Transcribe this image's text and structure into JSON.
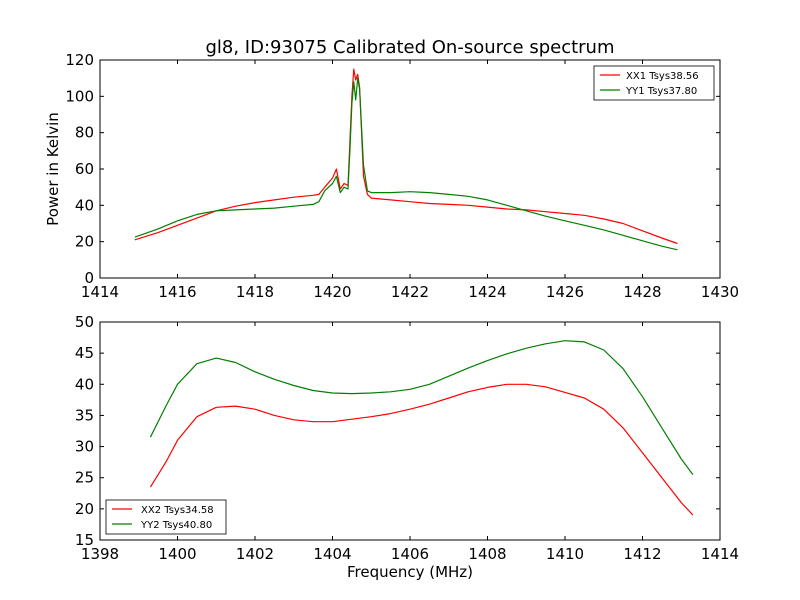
{
  "title": "gl8, ID:93075 Calibrated On-source spectrum",
  "chart_data": [
    {
      "type": "line",
      "ylabel": "Power in Kelvin",
      "xlabel": "",
      "xlim": [
        1414,
        1430
      ],
      "ylim": [
        0,
        120
      ],
      "xticks": [
        "1414",
        "1416",
        "1418",
        "1420",
        "1422",
        "1424",
        "1426",
        "1428",
        "1430"
      ],
      "yticks": [
        "0",
        "20",
        "40",
        "60",
        "80",
        "100",
        "120"
      ],
      "xtick_values": [
        1414,
        1416,
        1418,
        1420,
        1422,
        1424,
        1426,
        1428,
        1430
      ],
      "ytick_values": [
        0,
        20,
        40,
        60,
        80,
        100,
        120
      ],
      "legend_position": "top-right",
      "grid": false,
      "series": [
        {
          "name": "XX1 Tsys38.56",
          "color": "#ff0000",
          "x": [
            1414.9,
            1415.5,
            1416.0,
            1416.5,
            1417.0,
            1417.5,
            1418.0,
            1418.5,
            1419.0,
            1419.5,
            1419.65,
            1419.8,
            1420.0,
            1420.1,
            1420.2,
            1420.3,
            1420.4,
            1420.45,
            1420.5,
            1420.55,
            1420.6,
            1420.65,
            1420.7,
            1420.8,
            1420.9,
            1421.0,
            1421.5,
            1422.0,
            1422.5,
            1423.0,
            1423.5,
            1424.0,
            1424.5,
            1425.0,
            1425.5,
            1426.0,
            1426.5,
            1427.0,
            1427.5,
            1428.0,
            1428.5,
            1428.9
          ],
          "y": [
            21,
            25,
            29,
            33,
            37,
            39.5,
            41.5,
            43,
            44.5,
            45.5,
            46,
            50,
            55,
            60,
            49,
            52,
            51,
            75,
            100,
            115,
            109,
            112,
            105,
            56,
            46,
            44,
            43,
            42,
            41,
            40.5,
            40,
            39,
            38,
            37.5,
            36.5,
            35.5,
            34.5,
            32.5,
            30,
            26,
            22,
            19
          ]
        },
        {
          "name": "YY1 Tsys37.80",
          "color": "#008000",
          "x": [
            1414.9,
            1415.5,
            1416.0,
            1416.5,
            1417.0,
            1417.5,
            1418.0,
            1418.5,
            1419.0,
            1419.5,
            1419.65,
            1419.8,
            1420.0,
            1420.1,
            1420.2,
            1420.3,
            1420.4,
            1420.45,
            1420.5,
            1420.55,
            1420.6,
            1420.65,
            1420.7,
            1420.8,
            1420.9,
            1421.0,
            1421.5,
            1422.0,
            1422.5,
            1423.0,
            1423.5,
            1424.0,
            1424.5,
            1425.0,
            1425.5,
            1426.0,
            1426.5,
            1427.0,
            1427.5,
            1428.0,
            1428.5,
            1428.9
          ],
          "y": [
            22.5,
            27,
            31.5,
            35,
            37,
            37.5,
            38,
            38.5,
            39.5,
            40.5,
            42,
            48,
            52,
            56,
            47,
            50,
            49,
            70,
            96,
            108,
            98,
            110,
            104,
            62,
            48,
            47,
            47,
            47.5,
            47,
            46,
            45,
            43,
            40,
            37,
            34,
            31.5,
            29,
            26.5,
            23.5,
            20.5,
            17.5,
            15.5
          ]
        }
      ]
    },
    {
      "type": "line",
      "ylabel": "",
      "xlabel": "Frequency (MHz)",
      "xlim": [
        1398,
        1414
      ],
      "ylim": [
        15,
        50
      ],
      "xticks": [
        "1398",
        "1400",
        "1402",
        "1404",
        "1406",
        "1408",
        "1410",
        "1412",
        "1414"
      ],
      "yticks": [
        "15",
        "20",
        "25",
        "30",
        "35",
        "40",
        "45",
        "50"
      ],
      "xtick_values": [
        1398,
        1400,
        1402,
        1404,
        1406,
        1408,
        1410,
        1412,
        1414
      ],
      "ytick_values": [
        15,
        20,
        25,
        30,
        35,
        40,
        45,
        50
      ],
      "legend_position": "lower-left",
      "grid": false,
      "series": [
        {
          "name": "XX2 Tsys34.58",
          "color": "#ff0000",
          "x": [
            1399.3,
            1399.7,
            1400.0,
            1400.5,
            1401.0,
            1401.5,
            1402.0,
            1402.5,
            1403.0,
            1403.5,
            1404.0,
            1404.5,
            1405.0,
            1405.5,
            1406.0,
            1406.5,
            1407.0,
            1407.5,
            1408.0,
            1408.5,
            1409.0,
            1409.5,
            1410.0,
            1410.5,
            1411.0,
            1411.5,
            1412.0,
            1412.5,
            1413.0,
            1413.3
          ],
          "y": [
            23.5,
            27.5,
            31,
            34.8,
            36.3,
            36.5,
            36,
            35,
            34.3,
            34,
            34,
            34.4,
            34.8,
            35.3,
            36,
            36.8,
            37.8,
            38.8,
            39.5,
            40,
            40,
            39.6,
            38.7,
            37.8,
            36,
            33,
            29,
            25,
            21,
            19
          ]
        },
        {
          "name": "YY2 Tsys40.80",
          "color": "#008000",
          "x": [
            1399.3,
            1399.7,
            1400.0,
            1400.5,
            1401.0,
            1401.5,
            1402.0,
            1402.5,
            1403.0,
            1403.5,
            1404.0,
            1404.5,
            1405.0,
            1405.5,
            1406.0,
            1406.5,
            1407.0,
            1407.5,
            1408.0,
            1408.5,
            1409.0,
            1409.5,
            1410.0,
            1410.5,
            1411.0,
            1411.5,
            1412.0,
            1412.5,
            1413.0,
            1413.3
          ],
          "y": [
            31.5,
            36.5,
            40,
            43.3,
            44.2,
            43.5,
            42,
            40.8,
            39.8,
            39,
            38.6,
            38.5,
            38.6,
            38.8,
            39.2,
            40,
            41.3,
            42.6,
            43.8,
            44.9,
            45.8,
            46.5,
            47,
            46.8,
            45.5,
            42.5,
            38,
            33,
            28,
            25.5
          ]
        }
      ]
    }
  ]
}
